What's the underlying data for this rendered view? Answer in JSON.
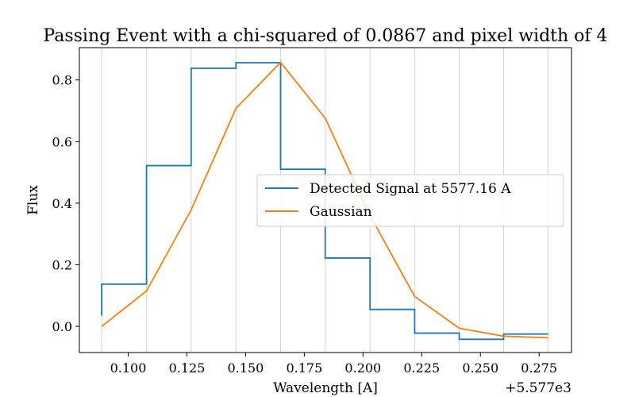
{
  "chart_data": {
    "type": "line",
    "title": "Passing Event with a chi-squared of 0.0867 and pixel width of 4",
    "xlabel": "Wavelength [A]",
    "ylabel": "Flux",
    "x_offset_label": "+5.577e3",
    "x_offset": 5577,
    "xlim": [
      5577.0792,
      5577.2888
    ],
    "ylim": [
      -0.085,
      0.905
    ],
    "x_ticks": [
      {
        "value": 5577.1,
        "label": "0.100"
      },
      {
        "value": 5577.125,
        "label": "0.125"
      },
      {
        "value": 5577.15,
        "label": "0.150"
      },
      {
        "value": 5577.175,
        "label": "0.175"
      },
      {
        "value": 5577.2,
        "label": "0.200"
      },
      {
        "value": 5577.225,
        "label": "0.225"
      },
      {
        "value": 5577.25,
        "label": "0.250"
      },
      {
        "value": 5577.275,
        "label": "0.275"
      }
    ],
    "y_ticks": [
      {
        "value": 0.0,
        "label": "0.0"
      },
      {
        "value": 0.2,
        "label": "0.2"
      },
      {
        "value": 0.4,
        "label": "0.4"
      },
      {
        "value": 0.6,
        "label": "0.6"
      },
      {
        "value": 0.8,
        "label": "0.8"
      }
    ],
    "vlines": [
      5577.0887,
      5577.1078,
      5577.1268,
      5577.1459,
      5577.1649,
      5577.1839,
      5577.203,
      5577.222,
      5577.241,
      5577.2599,
      5577.2788
    ],
    "grid": "vertical lines at sample wavelengths",
    "legend": "center-right",
    "series": [
      {
        "name": "Detected Signal at 5577.16 A",
        "color": "#1f77b4",
        "style": "step",
        "x": [
          5577.0887,
          5577.0887,
          5577.1078,
          5577.1268,
          5577.1459,
          5577.1649,
          5577.1839,
          5577.203,
          5577.222,
          5577.241,
          5577.2599,
          5577.2788
        ],
        "y": [
          0.035,
          0.137,
          0.522,
          0.838,
          0.856,
          0.51,
          0.222,
          0.055,
          -0.022,
          -0.042,
          -0.025,
          -0.025
        ]
      },
      {
        "name": "Gaussian",
        "color": "#ff7f0e",
        "style": "line",
        "x": [
          5577.0887,
          5577.1078,
          5577.1268,
          5577.1459,
          5577.1649,
          5577.1839,
          5577.203,
          5577.222,
          5577.241,
          5577.2599,
          5577.2788
        ],
        "y": [
          0.0,
          0.115,
          0.378,
          0.708,
          0.857,
          0.676,
          0.36,
          0.097,
          -0.006,
          -0.032,
          -0.037
        ]
      }
    ]
  }
}
